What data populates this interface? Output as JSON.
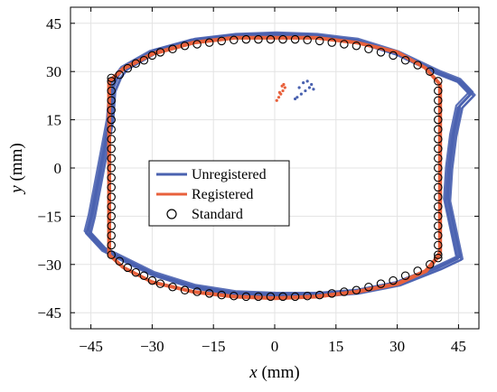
{
  "chart_data": {
    "type": "scatter",
    "xlabel_var": "x",
    "xlabel_unit": "(mm)",
    "ylabel_var": "y",
    "ylabel_unit": "(mm)",
    "xlim": [
      -50,
      50
    ],
    "ylim": [
      -50,
      50
    ],
    "xticks": [
      -45,
      -30,
      -15,
      0,
      15,
      30,
      45
    ],
    "yticks": [
      -45,
      -30,
      -15,
      0,
      15,
      30,
      45
    ],
    "grid": true,
    "legend_position": "center-left",
    "series": [
      {
        "name": "Unregistered",
        "color": "#4a62b0",
        "style": "line",
        "x": [
          -40,
          -38.5,
          -37,
          -30,
          -20,
          -10,
          0,
          10,
          20,
          30,
          40,
          45,
          48,
          45,
          43.5,
          42.5,
          42,
          45,
          40,
          30,
          20,
          10,
          0,
          -10,
          -20,
          -30,
          -42,
          -46,
          -45,
          -43.5,
          -42,
          -40.5,
          -40
        ],
        "y": [
          24,
          28.5,
          31,
          36,
          39.5,
          41,
          41.5,
          41,
          39.5,
          35.5,
          29.5,
          27,
          23,
          19,
          10,
          0,
          -10,
          -28,
          -31,
          -36,
          -38.5,
          -39.5,
          -39.5,
          -39,
          -37,
          -33,
          -25.5,
          -20,
          -15,
          -5,
          5,
          15,
          24
        ]
      },
      {
        "name": "Registered",
        "color": "#e8613c",
        "style": "line",
        "x": [
          -40.5,
          -37,
          -30,
          -20,
          -10,
          0,
          10,
          20,
          30,
          37,
          40.5,
          40.5,
          40,
          37,
          30,
          20,
          10,
          0,
          -10,
          -20,
          -30,
          -37,
          -40.5,
          -40.5
        ],
        "y": [
          27,
          31,
          35.5,
          39,
          40.5,
          40.5,
          40.5,
          39,
          36,
          31,
          26,
          -26,
          -27.5,
          -32,
          -36,
          -38.5,
          -40,
          -40.5,
          -40,
          -38.5,
          -35.5,
          -31,
          -27,
          27
        ]
      },
      {
        "name": "Standard",
        "color": "#000000",
        "style": "open-circle",
        "x": [
          -40,
          -40,
          -40,
          -40,
          -40,
          -40,
          -40,
          -40,
          -40,
          -40,
          -40,
          -40,
          -40,
          -40,
          -40,
          -40,
          -40,
          -40,
          -40,
          -40,
          40,
          40,
          40,
          40,
          40,
          40,
          40,
          40,
          40,
          40,
          40,
          40,
          40,
          40,
          40,
          40,
          40,
          40,
          40,
          40,
          -38,
          -36,
          -34,
          -32,
          -30,
          -28,
          -25,
          -22,
          -19,
          -16,
          -13,
          -10,
          -7,
          -4,
          -1,
          2,
          5,
          8,
          11,
          14,
          17,
          20,
          23,
          26,
          29,
          32,
          35,
          38,
          -38,
          -36,
          -34,
          -32,
          -30,
          -28,
          -25,
          -22,
          -19,
          -16,
          -13,
          -10,
          -7,
          -4,
          -1,
          2,
          5,
          8,
          11,
          14,
          17,
          20,
          23,
          26,
          29,
          32,
          35,
          38
        ],
        "y": [
          27,
          24,
          21,
          18,
          15,
          12,
          9,
          6,
          3,
          0,
          -3,
          -6,
          -9,
          -12,
          -15,
          -18,
          -21,
          -24,
          -27,
          28,
          27,
          24,
          21,
          18,
          15,
          12,
          9,
          6,
          3,
          0,
          -3,
          -6,
          -9,
          -12,
          -15,
          -18,
          -21,
          -24,
          -27,
          -28,
          29,
          31,
          32.5,
          33.5,
          35,
          36,
          37,
          38,
          38.5,
          39,
          39.5,
          39.8,
          40,
          40,
          40,
          40,
          40,
          39.8,
          39.5,
          39,
          38.5,
          38,
          37,
          36,
          35,
          33.5,
          32,
          30,
          -29,
          -31,
          -32.5,
          -33.5,
          -35,
          -36,
          -37,
          -38,
          -38.5,
          -39,
          -39.5,
          -39.8,
          -40,
          -40,
          -40,
          -40,
          -40,
          -39.8,
          -39.5,
          -39,
          -38.5,
          -38,
          -37,
          -36,
          -35,
          -33.5,
          -32,
          -30
        ]
      }
    ],
    "scatter_blue": {
      "x": [
        5.5,
        6.5,
        7.5,
        8.5,
        9,
        9.5,
        7,
        8,
        6,
        5
      ],
      "y": [
        22,
        23,
        24,
        25,
        26,
        24.5,
        26.5,
        27,
        25,
        21.5
      ]
    },
    "scatter_red": {
      "x": [
        0.5,
        1,
        1.5,
        2,
        2.5,
        2.2,
        1.8,
        1.2
      ],
      "y": [
        21,
        22,
        23,
        24,
        25,
        26,
        25.5,
        23.5
      ]
    }
  },
  "axis": {
    "xlabel_var": "x",
    "xlabel_unit": " (mm)",
    "ylabel_var": "y",
    "ylabel_unit": " (mm)"
  },
  "legend": {
    "items": [
      {
        "label": "Unregistered"
      },
      {
        "label": "Registered"
      },
      {
        "label": "Standard"
      }
    ]
  }
}
